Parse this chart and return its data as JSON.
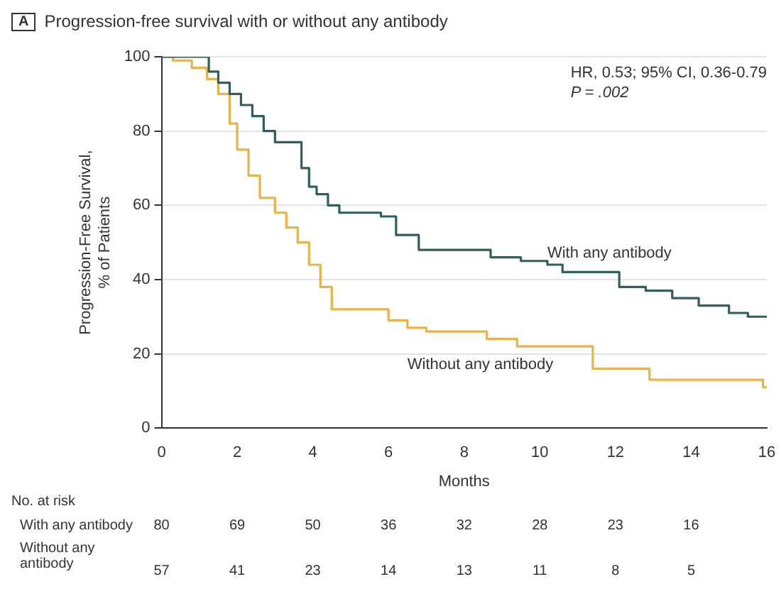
{
  "chart_data": {
    "type": "step",
    "title": "Progression-free survival with or without any antibody",
    "xlabel": "Months",
    "ylabel": "Progression-Free Survival,\n% of Patients",
    "xlim": [
      0,
      16
    ],
    "xticks": [
      0,
      2,
      4,
      6,
      8,
      10,
      12,
      14,
      16
    ],
    "ylim": [
      0,
      100
    ],
    "yticks": [
      0,
      20,
      40,
      60,
      80,
      100
    ],
    "grid": "y",
    "legend": false,
    "marker": "none",
    "annotations": [
      "A",
      "HR, 0.53; 95% CI, 0.36-0.79",
      "P = .002",
      "No. at risk",
      "With any antibody",
      "80",
      "69",
      "50",
      "36",
      "32",
      "28",
      "23",
      "16",
      "Without any antibody",
      "57",
      "41",
      "23",
      "14",
      "13",
      "11",
      "8",
      "5"
    ],
    "series": [
      {
        "name": "With any antibody",
        "color": "#2f5f5c",
        "x": [
          0,
          1.25,
          1.5,
          1.8,
          2.1,
          2.4,
          2.7,
          3.0,
          3.7,
          3.9,
          4.1,
          4.4,
          4.7,
          5.0,
          5.8,
          6.2,
          6.8,
          8.7,
          9.5,
          10.2,
          10.6,
          12.1,
          12.8,
          13.5,
          14.2,
          15.0,
          15.5,
          16
        ],
        "values": [
          100,
          96,
          93,
          90,
          87,
          84,
          80,
          77,
          70,
          65,
          63,
          60,
          58,
          58,
          57,
          52,
          48,
          46,
          45,
          44,
          42,
          38,
          37,
          35,
          33,
          31,
          30,
          30
        ]
      },
      {
        "name": "Without any antibody",
        "color": "#eeb148",
        "x": [
          0,
          0.3,
          0.8,
          1.2,
          1.5,
          1.8,
          2.0,
          2.3,
          2.6,
          3.0,
          3.3,
          3.6,
          3.9,
          4.2,
          4.5,
          5.5,
          6.0,
          6.5,
          7.0,
          8.6,
          9.4,
          11.4,
          12.9,
          15.9,
          16
        ],
        "values": [
          100,
          99,
          97,
          94,
          90,
          82,
          75,
          68,
          62,
          58,
          54,
          50,
          44,
          38,
          32,
          32,
          29,
          27,
          26,
          24,
          22,
          16,
          13,
          11,
          11
        ]
      }
    ]
  }
}
